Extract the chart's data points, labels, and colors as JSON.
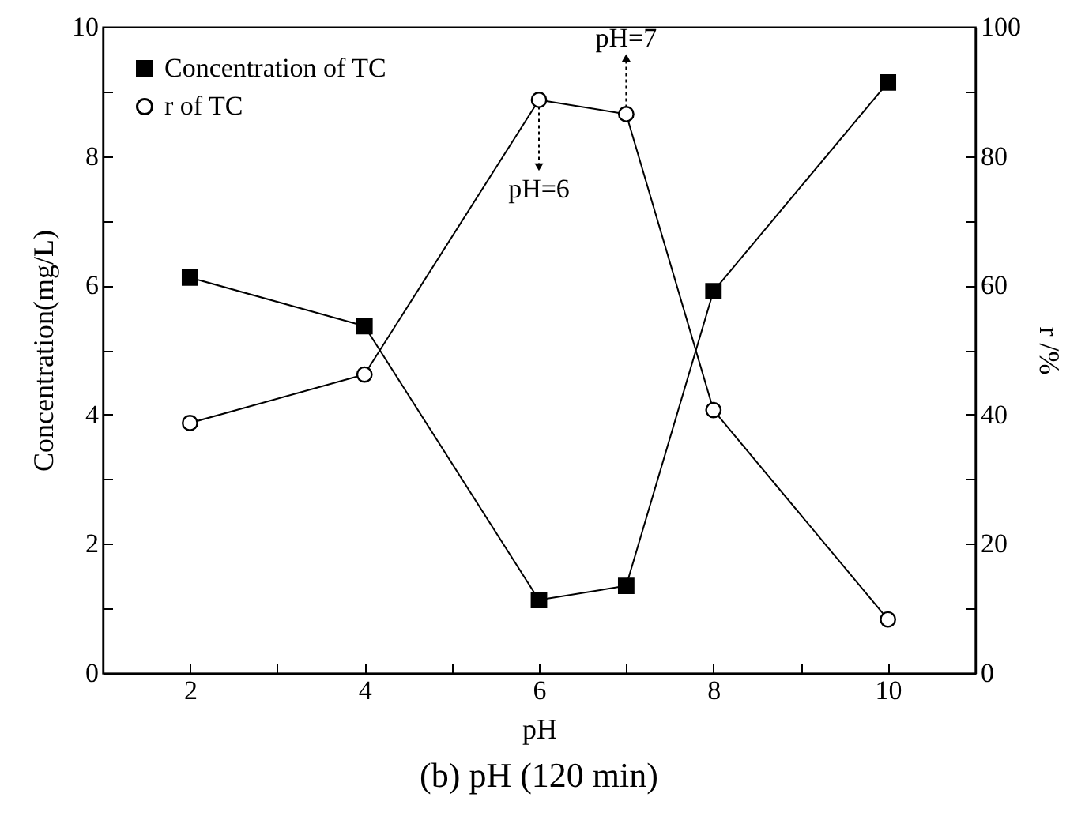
{
  "chart_data": {
    "type": "line",
    "title": "(b) pH (120 min)",
    "xlabel": "pH",
    "ylabel": "Concentration(mg/L)",
    "y2label": "r /%",
    "x": [
      2,
      4,
      6,
      7,
      8,
      10
    ],
    "series": [
      {
        "name": "Concentration of TC",
        "color": "#000000",
        "marker": "square",
        "values": [
          6.12,
          5.37,
          1.13,
          1.35,
          5.91,
          9.14
        ]
      },
      {
        "name": "r of TC",
        "color": "#000000",
        "marker": "circle",
        "axis": "y2",
        "values": [
          38.7,
          46.2,
          88.7,
          86.5,
          40.7,
          8.3
        ]
      }
    ],
    "xlim": [
      1,
      11
    ],
    "xticks": [
      {
        "value": 1,
        "label": null
      },
      2,
      {
        "value": 3,
        "label": null
      },
      4,
      {
        "value": 5,
        "label": null
      },
      6,
      {
        "value": 7,
        "label": null
      },
      8,
      {
        "value": 9,
        "label": null
      },
      10,
      {
        "value": 11,
        "label": null
      }
    ],
    "ylim": [
      0,
      10
    ],
    "yticks": [
      0,
      {
        "value": 1,
        "label": null
      },
      2,
      {
        "value": 3,
        "label": null
      },
      4,
      {
        "value": 5,
        "label": null
      },
      6,
      {
        "value": 7,
        "label": null
      },
      8,
      {
        "value": 9,
        "label": null
      },
      10
    ],
    "y2lim": [
      0,
      100
    ],
    "y2ticks": [
      0,
      {
        "value": 10,
        "label": null
      },
      20,
      {
        "value": 30,
        "label": null
      },
      40,
      {
        "value": 50,
        "label": null
      },
      60,
      {
        "value": 70,
        "label": null
      },
      80,
      {
        "value": 90,
        "label": null
      },
      100
    ],
    "annotations": [
      {
        "text": "pH=6",
        "x": 6,
        "y": 7.83
      },
      {
        "text": "pH=7",
        "x": 7,
        "y": 9.52
      }
    ],
    "grid": false,
    "legend": "top left",
    "line_style": "solid"
  }
}
